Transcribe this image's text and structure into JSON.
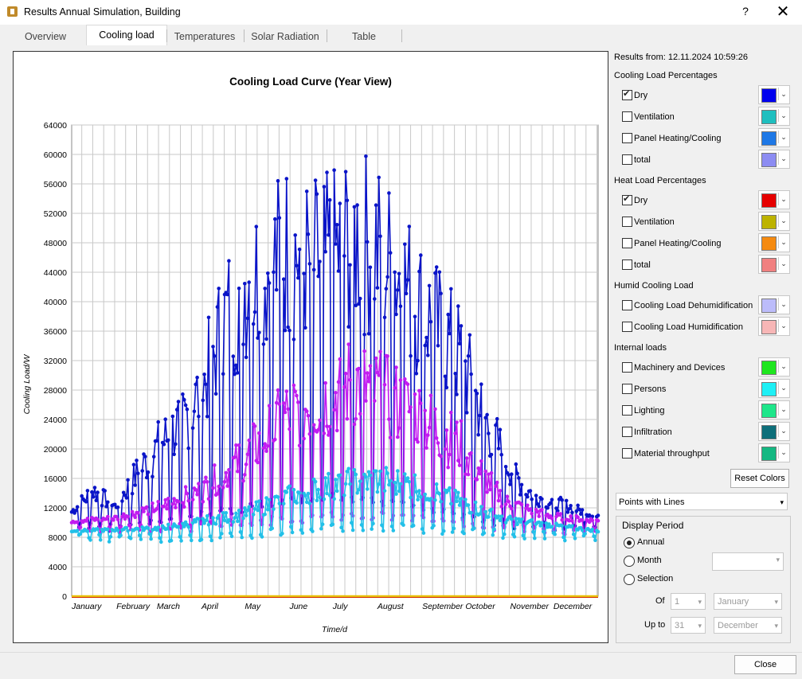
{
  "window": {
    "title": "Results Annual Simulation, Building",
    "help": "?",
    "close": "✕"
  },
  "tabs": [
    {
      "label": "Overview"
    },
    {
      "label": "Cooling load"
    },
    {
      "label": "Temperatures"
    },
    {
      "label": "Solar Radiation"
    },
    {
      "label": "Table"
    }
  ],
  "results_from": "Results from: 12.11.2024 10:59:26",
  "groups": {
    "cooling": "Cooling Load Percentages",
    "heat": "Heat Load Percentages",
    "humid": "Humid Cooling Load",
    "internal": "Internal loads"
  },
  "series_options": [
    {
      "label": "Dry",
      "checked": true,
      "color": "#0000ee"
    },
    {
      "label": "Ventilation",
      "checked": false,
      "color": "#1fbfbf"
    },
    {
      "label": "Panel Heating/Cooling",
      "checked": false,
      "color": "#1e78e6"
    },
    {
      "label": "total",
      "checked": false,
      "color": "#8c8cf2"
    },
    {
      "label": "Dry",
      "checked": true,
      "color": "#e60000"
    },
    {
      "label": "Ventilation",
      "checked": false,
      "color": "#bdb300"
    },
    {
      "label": "Panel Heating/Cooling",
      "checked": false,
      "color": "#f58a10"
    },
    {
      "label": "total",
      "checked": false,
      "color": "#f08080"
    },
    {
      "label": "Cooling Load Dehumidification",
      "checked": false,
      "color": "#bcbcfa"
    },
    {
      "label": "Cooling Load Humidification",
      "checked": false,
      "color": "#f7b6b6"
    },
    {
      "label": "Machinery and Devices",
      "checked": false,
      "color": "#1ee61e"
    },
    {
      "label": "Persons",
      "checked": false,
      "color": "#1ef0f5"
    },
    {
      "label": "Lighting",
      "checked": false,
      "color": "#1ee68a"
    },
    {
      "label": "Infiltration",
      "checked": false,
      "color": "#0e6f7a"
    },
    {
      "label": "Material throughput",
      "checked": false,
      "color": "#14b882"
    }
  ],
  "reset_colors": "Reset Colors",
  "plot_style": "Points with Lines",
  "display_period": {
    "title": "Display Period",
    "annual": "Annual",
    "month": "Month",
    "selection": "Selection",
    "of_label": "Of",
    "upto_label": "Up to",
    "of_day": "1",
    "of_month": "January",
    "upto_day": "31",
    "upto_month": "December",
    "selected": "Annual"
  },
  "close_button": "Close",
  "chart_data": {
    "type": "line",
    "title": "Cooling Load Curve (Year View)",
    "xlabel": "Time/d",
    "ylabel": "Cooling Load/W",
    "categories": [
      "January",
      "February",
      "March",
      "April",
      "May",
      "June",
      "July",
      "August",
      "September",
      "October",
      "November",
      "December"
    ],
    "yticks": [
      0,
      4000,
      8000,
      12000,
      16000,
      20000,
      24000,
      28000,
      32000,
      36000,
      40000,
      44000,
      48000,
      52000,
      56000,
      60000,
      64000
    ],
    "ylim": [
      0,
      64000
    ],
    "xlim": [
      0,
      365
    ],
    "grid": true,
    "series": [
      {
        "color": "#0a14c8",
        "envelope_day": [
          0,
          15,
          30,
          45,
          60,
          75,
          90,
          105,
          120,
          135,
          150,
          165,
          180,
          195,
          210,
          225,
          240,
          255,
          270,
          285,
          300,
          315,
          330,
          345,
          365
        ],
        "envelope_peak": [
          12000,
          16000,
          13000,
          19000,
          24000,
          28000,
          34000,
          46000,
          54000,
          56000,
          60000,
          57000,
          58000,
          62000,
          60000,
          56000,
          50000,
          45000,
          40000,
          30000,
          22000,
          16000,
          14000,
          13000,
          11000
        ],
        "baseline": [
          10000,
          10000,
          10000,
          10200,
          10500,
          11000,
          11500,
          12000,
          12500,
          13000,
          13500,
          14000,
          14000,
          14000,
          13500,
          13000,
          12500,
          12000,
          11500,
          11000,
          10500,
          10200,
          10000,
          10000,
          10000
        ]
      },
      {
        "color": "#c21cf0",
        "envelope_day": [
          0,
          30,
          60,
          90,
          120,
          150,
          180,
          195,
          210,
          240,
          270,
          300,
          330,
          365
        ],
        "envelope_peak": [
          10500,
          11000,
          13000,
          16000,
          22000,
          30000,
          33000,
          36000,
          34000,
          30000,
          24000,
          14000,
          11500,
          10500
        ],
        "baseline": [
          9500,
          9500,
          9800,
          10000,
          10500,
          11000,
          11500,
          11500,
          11500,
          11000,
          10500,
          10000,
          9600,
          9500
        ]
      },
      {
        "color": "#23c0e8",
        "envelope_day": [
          0,
          60,
          120,
          150,
          180,
          210,
          240,
          300,
          365
        ],
        "envelope_peak": [
          9000,
          9500,
          12000,
          15000,
          17000,
          18000,
          17000,
          11000,
          9000
        ],
        "baseline": [
          8500,
          8500,
          8800,
          9500,
          10000,
          10000,
          9800,
          9000,
          8500
        ]
      },
      {
        "color": "#e8c000",
        "constant": 0
      },
      {
        "color": "#c80000",
        "constant": 0
      }
    ]
  }
}
